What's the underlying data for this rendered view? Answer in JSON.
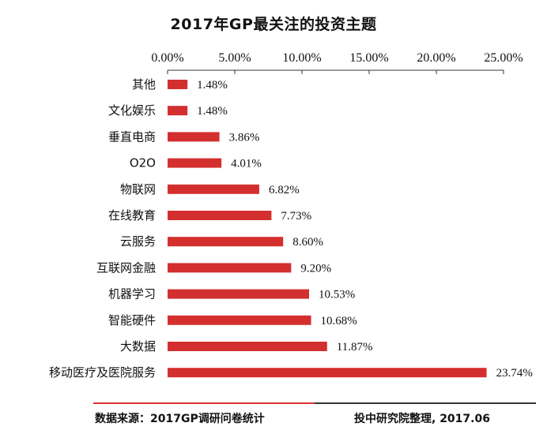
{
  "chart_data": {
    "type": "bar",
    "orientation": "horizontal",
    "title": "2017年GP最关注的投资主题",
    "categories": [
      "其他",
      "文化娱乐",
      "垂直电商",
      "O2O",
      "物联网",
      "在线教育",
      "云服务",
      "互联网金融",
      "机器学习",
      "智能硬件",
      "大数据",
      "移动医疗及医院服务"
    ],
    "values": [
      1.48,
      1.48,
      3.86,
      4.01,
      6.82,
      7.73,
      8.6,
      9.2,
      10.53,
      10.68,
      11.87,
      23.74
    ],
    "value_labels": [
      "1.48%",
      "1.48%",
      "3.86%",
      "4.01%",
      "6.82%",
      "7.73%",
      "8.60%",
      "9.20%",
      "10.53%",
      "10.68%",
      "11.87%",
      "23.74%"
    ],
    "x_ticks": [
      "0.00%",
      "5.00%",
      "10.00%",
      "15.00%",
      "20.00%",
      "25.00%"
    ],
    "xlim": [
      0,
      25
    ],
    "axis_position": "top",
    "grid": false,
    "bar_color": "#d32f2f"
  },
  "footer": {
    "source": "数据来源：2017GP调研问卷统计",
    "credit": "投中研究院整理, 2017.06"
  }
}
